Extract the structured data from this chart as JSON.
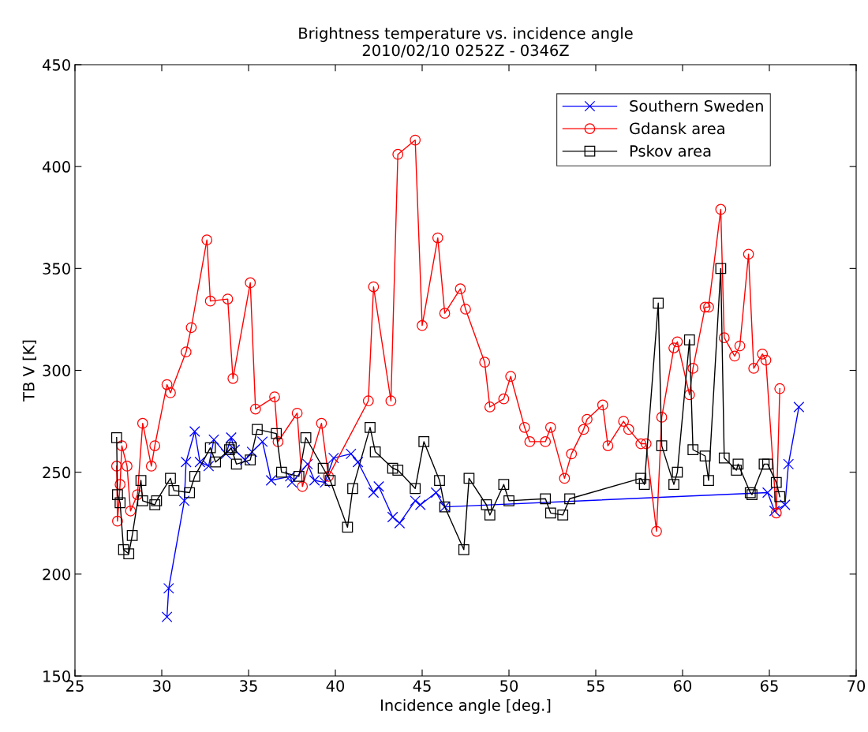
{
  "chart_data": {
    "type": "line",
    "title": "Brightness temperature vs. incidence angle",
    "subtitle": "2010/02/10 0252Z - 0346Z",
    "xlabel": "Incidence angle [deg.]",
    "ylabel": "TB V [K]",
    "xlim": [
      25,
      70
    ],
    "xticks": [
      25,
      30,
      35,
      40,
      45,
      50,
      55,
      60,
      65,
      70
    ],
    "ylim": [
      150,
      450
    ],
    "yticks": [
      150,
      200,
      250,
      300,
      350,
      400,
      450
    ],
    "grid": false,
    "legend": "top right",
    "line_style": "solid",
    "series": [
      {
        "name": "Southern Sweden",
        "color": "#0000ff",
        "marker": "cross",
        "x": [
          30.3,
          30.4,
          31.3,
          31.4,
          31.9,
          32.2,
          32.7,
          33.0,
          33.7,
          34.0,
          34.2,
          34.8,
          35.2,
          35.8,
          36.3,
          37.4,
          37.5,
          38.4,
          38.8,
          39.4,
          39.9,
          40.9,
          41.3,
          42.2,
          42.5,
          43.3,
          43.7,
          44.6,
          44.9,
          45.8,
          46.3,
          64.9,
          65.3,
          65.9,
          66.1,
          66.7
        ],
        "values": [
          179,
          193,
          236,
          255,
          270,
          255,
          253,
          266,
          259,
          267,
          261,
          256,
          260,
          265,
          246,
          248,
          245,
          254,
          246,
          245,
          257,
          259,
          255,
          240,
          243,
          228,
          225,
          236,
          234,
          240,
          233,
          240,
          231,
          234,
          254,
          282
        ]
      },
      {
        "name": "Gdansk area",
        "color": "#ff0000",
        "marker": "circle",
        "x": [
          27.4,
          27.45,
          27.6,
          27.7,
          28.0,
          28.2,
          28.6,
          28.9,
          29.4,
          29.6,
          30.3,
          30.5,
          31.4,
          31.7,
          32.6,
          32.8,
          33.8,
          34.1,
          35.1,
          35.4,
          36.5,
          36.7,
          37.8,
          38.1,
          39.2,
          39.6,
          41.9,
          42.2,
          43.2,
          43.6,
          44.6,
          45.0,
          45.9,
          46.3,
          47.2,
          47.5,
          48.6,
          48.9,
          49.7,
          50.1,
          50.9,
          51.2,
          52.1,
          52.4,
          53.2,
          53.6,
          54.3,
          54.5,
          55.4,
          55.7,
          56.6,
          56.9,
          57.6,
          57.9,
          58.5,
          58.8,
          59.5,
          59.7,
          60.4,
          60.6,
          61.3,
          61.5,
          62.2,
          62.4,
          63.0,
          63.3,
          63.8,
          64.1,
          64.6,
          64.8,
          65.4,
          65.6
        ],
        "values": [
          253,
          226,
          244,
          263,
          253,
          231,
          239,
          274,
          253,
          263,
          293,
          289,
          309,
          321,
          364,
          334,
          335,
          296,
          343,
          281,
          287,
          265,
          279,
          243,
          274,
          248,
          285,
          341,
          285,
          406,
          413,
          322,
          365,
          328,
          340,
          330,
          304,
          282,
          286,
          297,
          272,
          265,
          265,
          272,
          247,
          259,
          271,
          276,
          283,
          263,
          275,
          271,
          264,
          264,
          221,
          277,
          311,
          314,
          288,
          301,
          331,
          331,
          379,
          316,
          307,
          312,
          357,
          301,
          308,
          305,
          230,
          291
        ]
      },
      {
        "name": "Pskov area",
        "color": "#000000",
        "marker": "square",
        "x": [
          27.4,
          27.45,
          27.6,
          27.8,
          28.1,
          28.3,
          28.8,
          28.9,
          29.6,
          29.7,
          30.5,
          30.7,
          31.6,
          31.9,
          32.8,
          33.1,
          33.9,
          34.0,
          34.3,
          35.1,
          35.5,
          36.6,
          36.9,
          37.9,
          38.3,
          39.3,
          39.7,
          40.7,
          41.0,
          42.0,
          42.3,
          43.3,
          43.6,
          44.6,
          45.1,
          46.0,
          46.3,
          47.4,
          47.7,
          48.7,
          48.9,
          49.7,
          50.0,
          52.1,
          52.4,
          53.1,
          53.5,
          57.6,
          57.8,
          58.6,
          58.8,
          59.5,
          59.7,
          60.4,
          60.6,
          61.3,
          61.5,
          62.2,
          62.4,
          63.1,
          63.2,
          63.9,
          64.0,
          64.7,
          64.9,
          65.4,
          65.6
        ],
        "values": [
          267,
          239,
          235,
          212,
          210,
          219,
          246,
          236,
          234,
          236,
          247,
          241,
          240,
          248,
          262,
          255,
          261,
          262,
          254,
          256,
          271,
          269,
          250,
          248,
          267,
          252,
          246,
          223,
          242,
          272,
          260,
          252,
          251,
          242,
          265,
          246,
          233,
          212,
          247,
          234,
          229,
          244,
          236,
          237,
          230,
          229,
          237,
          247,
          244,
          333,
          263,
          244,
          250,
          315,
          261,
          258,
          246,
          350,
          257,
          251,
          254,
          240,
          239,
          254,
          254,
          245,
          238
        ]
      }
    ]
  }
}
